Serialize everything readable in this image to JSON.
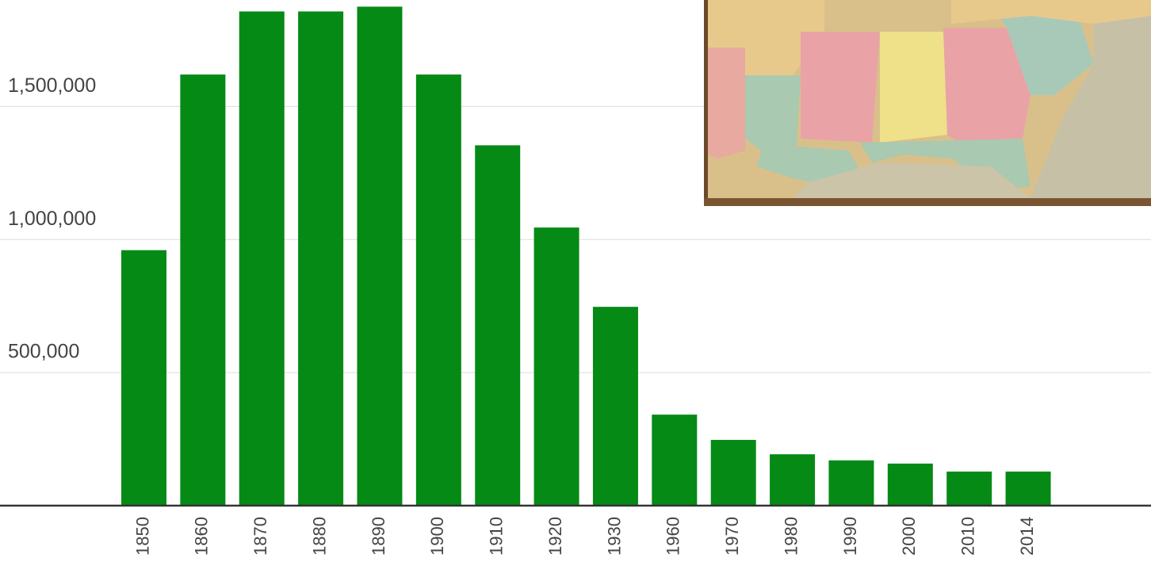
{
  "chart_data": {
    "type": "bar",
    "categories": [
      "1850",
      "1860",
      "1870",
      "1880",
      "1890",
      "1900",
      "1910",
      "1920",
      "1930",
      "1960",
      "1970",
      "1980",
      "1990",
      "2000",
      "2010",
      "2014"
    ],
    "values": [
      960000,
      1620000,
      1857000,
      1857000,
      1875000,
      1620000,
      1354000,
      1045000,
      747000,
      342000,
      247000,
      193000,
      170000,
      158000,
      128000,
      128000
    ],
    "color": "#058a15",
    "ylim": [
      0,
      1900000
    ],
    "yticks": [
      {
        "value": 500000,
        "label": "500,000"
      },
      {
        "value": 1000000,
        "label": "1,000,000"
      },
      {
        "value": 1500000,
        "label": "1,500,000"
      }
    ],
    "grid": true
  }
}
